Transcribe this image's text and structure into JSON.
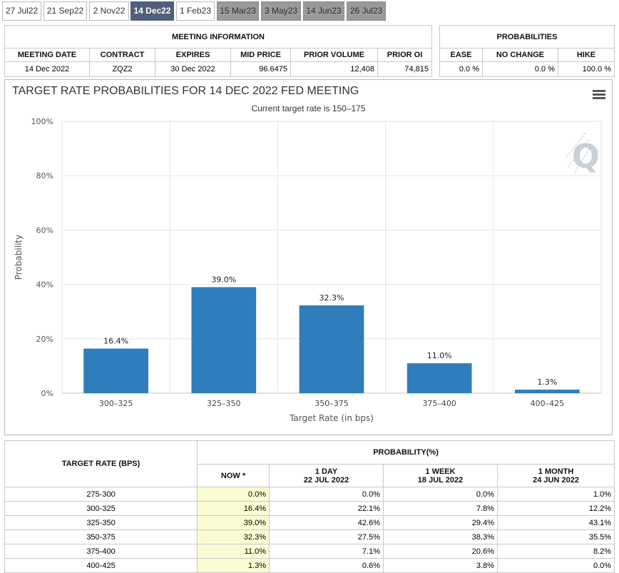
{
  "tabs": [
    {
      "label": "27 Jul22",
      "state": "normal"
    },
    {
      "label": "21 Sep22",
      "state": "normal"
    },
    {
      "label": "2 Nov22",
      "state": "normal"
    },
    {
      "label": "14 Dec22",
      "state": "active"
    },
    {
      "label": "1 Feb23",
      "state": "normal"
    },
    {
      "label": "15 Mar23",
      "state": "future"
    },
    {
      "label": "3 May23",
      "state": "future"
    },
    {
      "label": "14 Jun23",
      "state": "future"
    },
    {
      "label": "26 Jul23",
      "state": "future"
    }
  ],
  "meeting_info": {
    "title": "MEETING INFORMATION",
    "headers": [
      "MEETING DATE",
      "CONTRACT",
      "EXPIRES",
      "MID PRICE",
      "PRIOR VOLUME",
      "PRIOR OI"
    ],
    "values": [
      "14 Dec 2022",
      "ZQZ2",
      "30 Dec 2022",
      "96.6475",
      "12,408",
      "74,815"
    ]
  },
  "probabilities": {
    "title": "PROBABILITIES",
    "headers": [
      "EASE",
      "NO CHANGE",
      "HIKE"
    ],
    "values": [
      "0.0 %",
      "0.0 %",
      "100.0 %"
    ]
  },
  "chart_data": {
    "type": "bar",
    "title": "TARGET RATE PROBABILITIES FOR 14 DEC 2022 FED MEETING",
    "subtitle": "Current target rate is 150–175",
    "xlabel": "Target Rate (in bps)",
    "ylabel": "Probability",
    "categories": [
      "300–325",
      "325–350",
      "350–375",
      "375–400",
      "400–425"
    ],
    "values": [
      16.4,
      39.0,
      32.3,
      11.0,
      1.3
    ],
    "data_labels": [
      "16.4%",
      "39.0%",
      "32.3%",
      "11.0%",
      "1.3%"
    ],
    "yticks": [
      "0%",
      "20%",
      "40%",
      "60%",
      "80%",
      "100%"
    ],
    "ylim": [
      0,
      100
    ],
    "bar_color": "#2f7dbb",
    "grid": true
  },
  "prob_table": {
    "header_left": "TARGET RATE (BPS)",
    "header_right": "PROBABILITY(%)",
    "columns": [
      {
        "line1": "NOW *",
        "line2": ""
      },
      {
        "line1": "1 DAY",
        "line2": "22 JUL 2022"
      },
      {
        "line1": "1 WEEK",
        "line2": "18 JUL 2022"
      },
      {
        "line1": "1 MONTH",
        "line2": "24 JUN 2022"
      }
    ],
    "rows": [
      {
        "rate": "275-300",
        "vals": [
          "0.0%",
          "0.0%",
          "0.0%",
          "1.0%"
        ]
      },
      {
        "rate": "300-325",
        "vals": [
          "16.4%",
          "22.1%",
          "7.8%",
          "12.2%"
        ]
      },
      {
        "rate": "325-350",
        "vals": [
          "39.0%",
          "42.6%",
          "29.4%",
          "43.1%"
        ]
      },
      {
        "rate": "350-375",
        "vals": [
          "32.3%",
          "27.5%",
          "38.3%",
          "35.5%"
        ]
      },
      {
        "rate": "375-400",
        "vals": [
          "11.0%",
          "7.1%",
          "20.6%",
          "8.2%"
        ]
      },
      {
        "rate": "400-425",
        "vals": [
          "1.3%",
          "0.6%",
          "3.8%",
          "0.0%"
        ]
      }
    ]
  },
  "colors": {
    "tab_active": "#51607a",
    "tab_future": "#9a9a9a",
    "now_column": "#fafbd3"
  }
}
